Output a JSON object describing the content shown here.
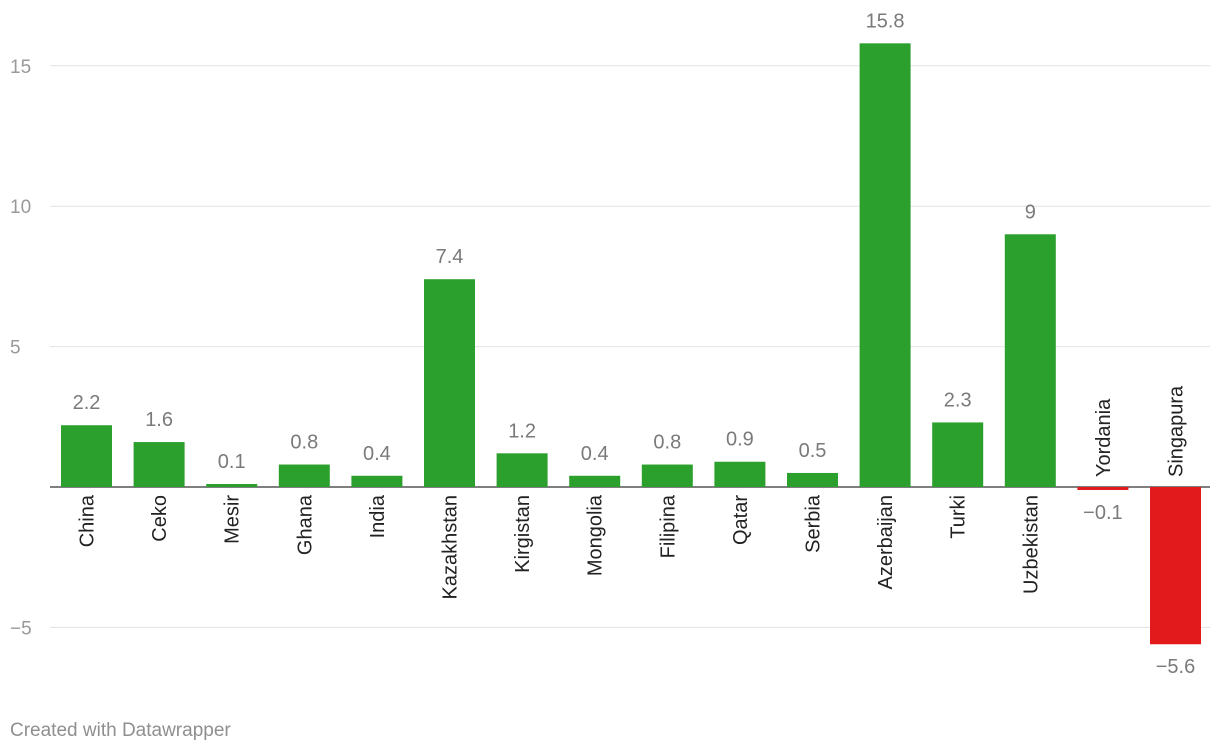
{
  "chart_data": {
    "type": "bar",
    "categories": [
      "China",
      "Ceko",
      "Mesir",
      "Ghana",
      "India",
      "Kazakhstan",
      "Kirgistan",
      "Mongolia",
      "Filipina",
      "Qatar",
      "Serbia",
      "Azerbaijan",
      "Turki",
      "Uzbekistan",
      "Yordania",
      "Singapura"
    ],
    "values": [
      2.2,
      1.6,
      0.1,
      0.8,
      0.4,
      7.4,
      1.2,
      0.4,
      0.8,
      0.9,
      0.5,
      15.8,
      2.3,
      9,
      -0.1,
      -5.6
    ],
    "value_labels": [
      "2.2",
      "1.6",
      "0.1",
      "0.8",
      "0.4",
      "7.4",
      "1.2",
      "0.4",
      "0.8",
      "0.9",
      "0.5",
      "15.8",
      "2.3",
      "9",
      "−0.1",
      "−5.6"
    ],
    "y_ticks": [
      15,
      10,
      5,
      -5
    ],
    "y_tick_labels": [
      "15",
      "10",
      "5",
      "−5"
    ],
    "ylim": [
      -5.6,
      15.8
    ],
    "grid": true,
    "colors": {
      "positive": "#2ca02c",
      "negative": "#e31a1c"
    }
  },
  "footer": {
    "credit": "Created with Datawrapper"
  }
}
